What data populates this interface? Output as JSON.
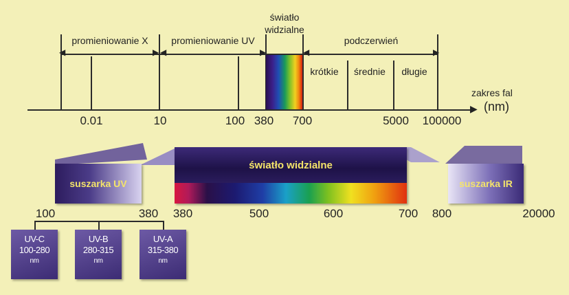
{
  "top_scale": {
    "regions": [
      "promieniowanie X",
      "promieniowanie UV",
      "podczerwień"
    ],
    "visible_label_line1": "światło",
    "visible_label_line2": "widzialne",
    "ir_subregions": [
      "krótkie",
      "średnie",
      "długie"
    ],
    "axis_label_line1": "zakres fal",
    "axis_label_line2": "(nm)",
    "ticks": [
      "0.01",
      "10",
      "100",
      "380",
      "700",
      "5000",
      "100000"
    ]
  },
  "bottom_band": {
    "uv_dryer": "suszarka UV",
    "visible_light": "światło widzialne",
    "ir_dryer": "suszarka IR",
    "ticks": [
      "100",
      "380",
      "380",
      "500",
      "600",
      "700",
      "800",
      "20000"
    ]
  },
  "uv_bands": [
    {
      "name": "UV-C",
      "range": "100-280",
      "unit": "nm"
    },
    {
      "name": "UV-B",
      "range": "280-315",
      "unit": "nm"
    },
    {
      "name": "UV-A",
      "range": "315-380",
      "unit": "nm"
    }
  ],
  "colors": {
    "background": "#f3f0b8",
    "block_label": "#f4e46a",
    "block_dark": "#2d1c5e"
  }
}
